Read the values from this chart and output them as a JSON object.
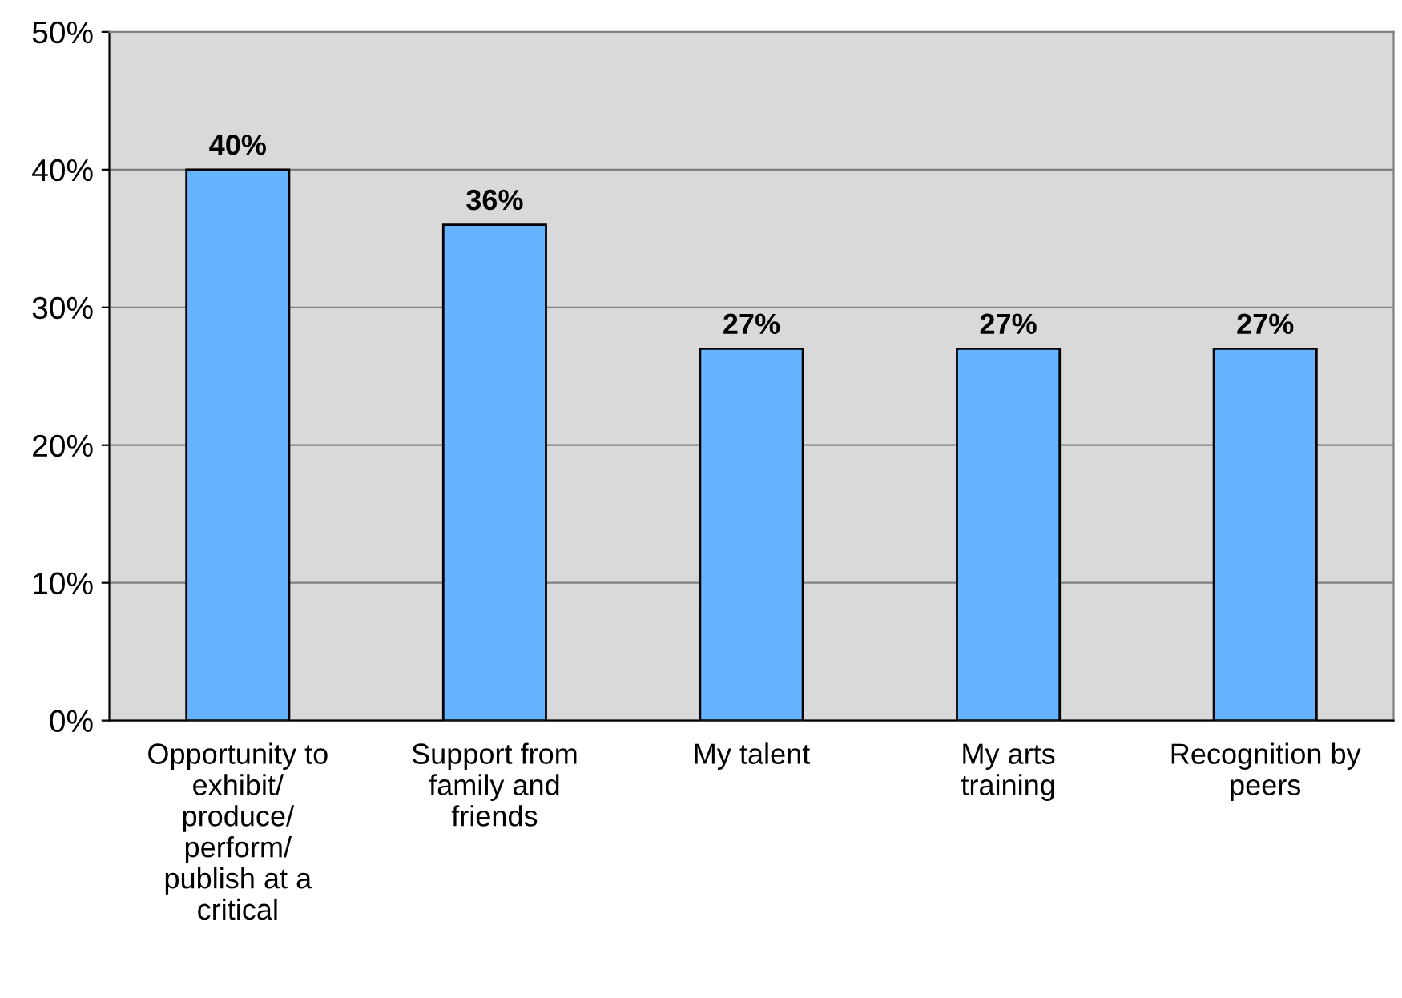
{
  "chart_data": {
    "type": "bar",
    "categories": [
      "Opportunity to\nexhibit/\nproduce/\nperform/\npublish at a\ncritical",
      "Support from\nfamily and\nfriends",
      "My talent",
      "My arts\ntraining",
      "Recognition by\npeers"
    ],
    "values": [
      40,
      36,
      27,
      27,
      27
    ],
    "value_labels": [
      "40%",
      "36%",
      "27%",
      "27%",
      "27%"
    ],
    "color": "#66b3ff",
    "ylim": [
      0,
      50
    ],
    "yticks": [
      {
        "value": 0,
        "label": "0%"
      },
      {
        "value": 10,
        "label": "10%"
      },
      {
        "value": 20,
        "label": "20%"
      },
      {
        "value": 30,
        "label": "30%"
      },
      {
        "value": 40,
        "label": "40%"
      },
      {
        "value": 50,
        "label": "50%"
      }
    ],
    "grid": "y",
    "legend": false
  }
}
